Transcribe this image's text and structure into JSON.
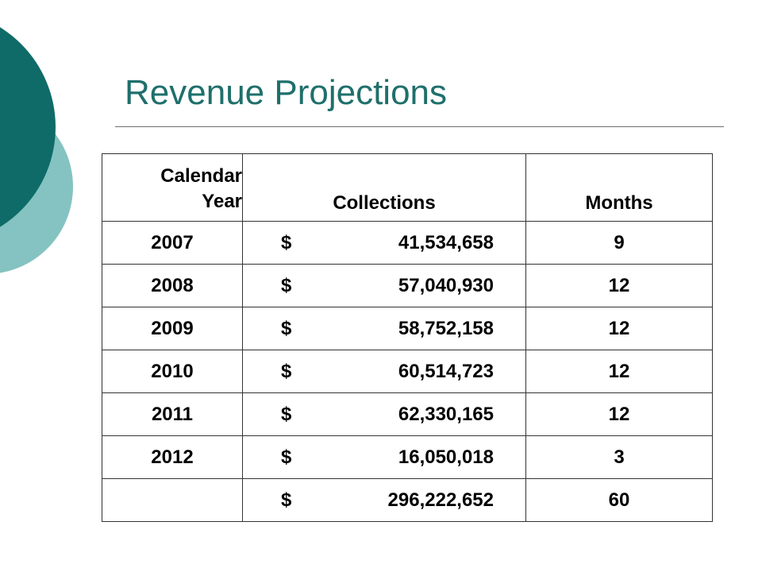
{
  "slide": {
    "title": "Revenue Projections",
    "accent_color": "#1f6f6c"
  },
  "table": {
    "headers": {
      "year_line1": "Calendar",
      "year_line2": "Year",
      "collections": "Collections",
      "months": "Months"
    },
    "rows": [
      {
        "year": "2007",
        "currency": "$",
        "collections": "41,534,658",
        "months": "9"
      },
      {
        "year": "2008",
        "currency": "$",
        "collections": "57,040,930",
        "months": "12"
      },
      {
        "year": "2009",
        "currency": "$",
        "collections": "58,752,158",
        "months": "12"
      },
      {
        "year": "2010",
        "currency": "$",
        "collections": "60,514,723",
        "months": "12"
      },
      {
        "year": "2011",
        "currency": "$",
        "collections": "62,330,165",
        "months": "12"
      },
      {
        "year": "2012",
        "currency": "$",
        "collections": "16,050,018",
        "months": "3"
      }
    ],
    "total": {
      "year": "",
      "currency": "$",
      "collections": "296,222,652",
      "months": "60"
    }
  }
}
